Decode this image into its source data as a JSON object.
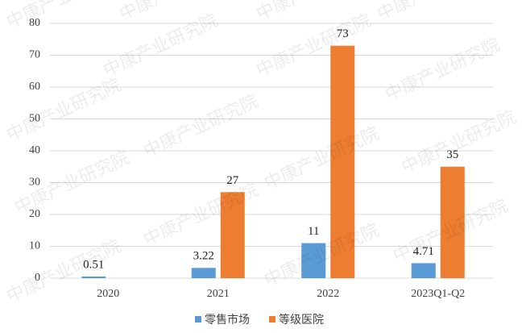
{
  "chart_data": {
    "type": "bar",
    "watermark": "中康产业研究院",
    "categories": [
      "2020",
      "2021",
      "2022",
      "2023Q1-Q2"
    ],
    "series": [
      {
        "name": "零售市场",
        "color": "#5b9bd5",
        "values": [
          0.51,
          3.22,
          11,
          4.71
        ]
      },
      {
        "name": "等级医院",
        "color": "#ed7d31",
        "values": [
          null,
          27,
          73,
          35
        ]
      }
    ],
    "ylim": [
      0,
      80
    ],
    "yticks": [
      0,
      10,
      20,
      30,
      40,
      50,
      60,
      70,
      80
    ],
    "grid": true,
    "legend": "bottom"
  }
}
